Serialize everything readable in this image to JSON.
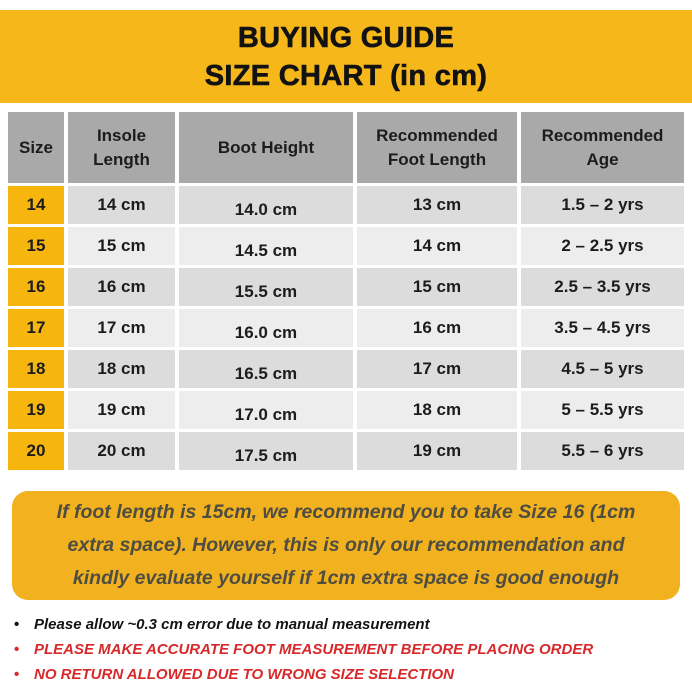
{
  "title": {
    "line1": "BUYING GUIDE",
    "line2": "SIZE CHART (in cm)"
  },
  "chart_data": {
    "type": "table",
    "title": "BUYING GUIDE SIZE CHART (in cm)",
    "columns": [
      "Size",
      "Insole Length",
      "Boot Height",
      "Recommended Foot Length",
      "Recommended Age"
    ],
    "rows": [
      [
        "14",
        "14 cm",
        "14.0 cm",
        "13 cm",
        "1.5 – 2 yrs"
      ],
      [
        "15",
        "15 cm",
        "14.5 cm",
        "14 cm",
        "2 – 2.5 yrs"
      ],
      [
        "16",
        "16 cm",
        "15.5 cm",
        "15 cm",
        "2.5 – 3.5 yrs"
      ],
      [
        "17",
        "17 cm",
        "16.0 cm",
        "16 cm",
        "3.5 – 4.5 yrs"
      ],
      [
        "18",
        "18 cm",
        "16.5 cm",
        "17 cm",
        "4.5 – 5 yrs"
      ],
      [
        "19",
        "19 cm",
        "17.0 cm",
        "18 cm",
        "5 – 5.5 yrs"
      ],
      [
        "20",
        "20 cm",
        "17.5 cm",
        "19 cm",
        "5.5 – 6 yrs"
      ]
    ]
  },
  "note": {
    "text": "If foot length is 15cm, we recommend you to take Size 16 (1cm extra space). However, this is only our recommendation and kindly evaluate yourself if 1cm extra space is good enough"
  },
  "bullets": [
    "Please allow ~0.3 cm error due to manual measurement",
    "PLEASE MAKE ACCURATE FOOT MEASUREMENT BEFORE PLACING ORDER",
    "NO RETURN ALLOWED DUE TO WRONG SIZE SELECTION"
  ],
  "colors": {
    "banner_yellow": "#F5B71A",
    "size_cell_yellow": "#F7B60E",
    "note_yellow": "#F2B11E",
    "header_gray": "#A9A9A9",
    "row_gray_dark": "#DCDCDC",
    "row_gray_light": "#EDEDED",
    "bullet_red": "#D8282A",
    "note_text": "#4E4D42"
  }
}
